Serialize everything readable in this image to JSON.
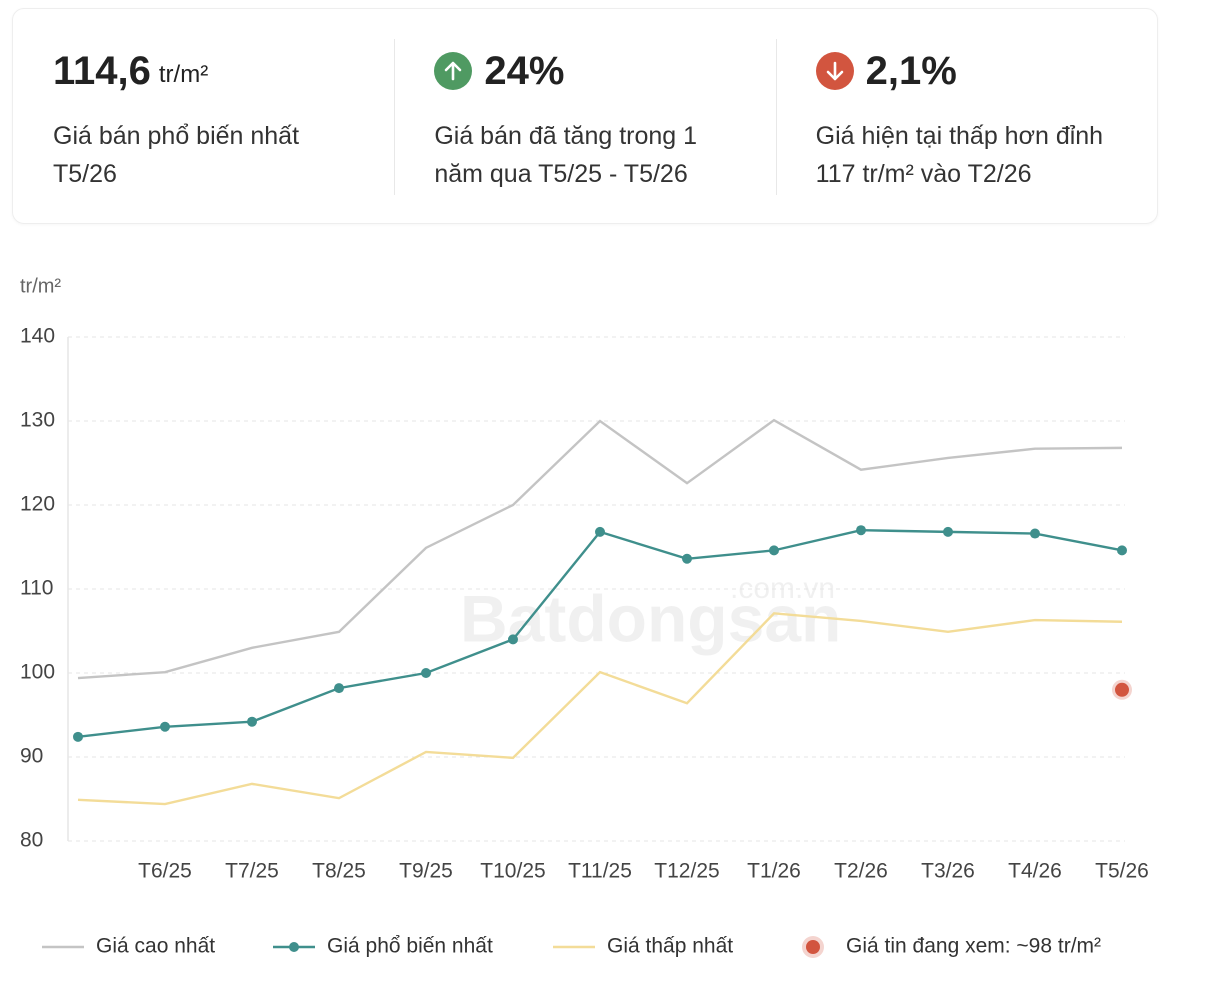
{
  "stats": [
    {
      "value": "114,6",
      "unit": "tr/m²",
      "description": [
        "Giá bán phổ biến nhất",
        "T5/26"
      ]
    },
    {
      "value": "24%",
      "description": [
        "Giá bán đã tăng trong 1",
        "năm qua T5/25 - T5/26"
      ]
    },
    {
      "value": "2,1%",
      "description": [
        "Giá hiện tại thấp hơn đỉnh",
        "117 tr/m² vào T2/26"
      ]
    }
  ],
  "chart_data": {
    "type": "line",
    "y_label": "tr/m²",
    "watermark": "Batdongsan",
    "watermark_suffix": ".com.vn",
    "categories": [
      null,
      "T6/25",
      "T7/25",
      "T8/25",
      "T9/25",
      "T10/25",
      "T11/25",
      "T12/25",
      "T1/26",
      "T2/26",
      "T3/26",
      "T4/26",
      "T5/26"
    ],
    "ylim": [
      80,
      140
    ],
    "yticks": [
      80,
      90,
      100,
      110,
      120,
      130,
      140
    ],
    "grid": true,
    "legend": "bottom",
    "series": [
      {
        "name": "Giá cao nhất",
        "color": "#c4c4c4",
        "markers": false,
        "values": [
          99.4,
          100.1,
          103,
          104.9,
          114.9,
          120,
          130,
          122.6,
          130.1,
          124.2,
          125.6,
          126.7,
          126.8
        ]
      },
      {
        "name": "Giá phổ biến nhất",
        "color": "#3f8f8c",
        "markers": true,
        "values": [
          92.4,
          93.6,
          94.2,
          98.2,
          100,
          104,
          116.8,
          113.6,
          114.6,
          117,
          116.8,
          116.6,
          114.6
        ]
      },
      {
        "name": "Giá thấp nhất",
        "color": "#f3dc98",
        "markers": false,
        "values": [
          84.9,
          84.4,
          86.8,
          85.1,
          90.6,
          89.9,
          100.1,
          96.4,
          107.1,
          106.2,
          104.9,
          106.3,
          106.1
        ]
      },
      {
        "name": "Giá tin đang xem: ~98 tr/m²",
        "color": "#d2553f",
        "style": "dot",
        "values": [
          null,
          null,
          null,
          null,
          null,
          null,
          null,
          null,
          null,
          null,
          null,
          null,
          98
        ]
      }
    ]
  }
}
